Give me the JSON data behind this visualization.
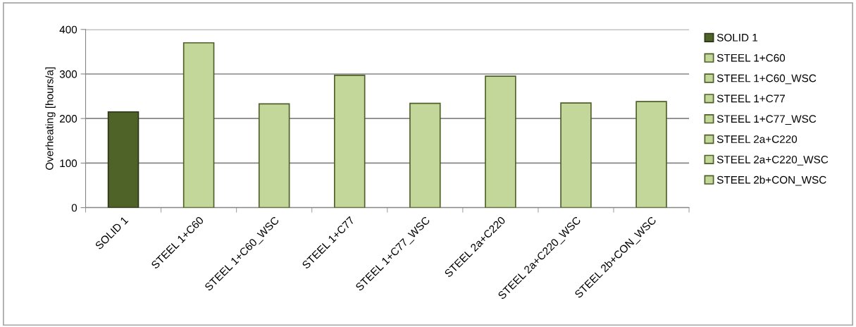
{
  "chart_data": {
    "type": "bar",
    "ylabel": "Overheating [hours/a]",
    "categories": [
      "SOLID 1",
      "STEEL 1+C60",
      "STEEL 1+C60_WSC",
      "STEEL 1+C77",
      "STEEL 1+C77_WSC",
      "STEEL 2a+C220",
      "STEEL 2a+C220_WSC",
      "STEEL 2b+CON_WSC"
    ],
    "series": [
      {
        "name": "SOLID 1",
        "color": "#4f6228",
        "values": [
          215,
          null,
          null,
          null,
          null,
          null,
          null,
          null
        ]
      },
      {
        "name": "STEEL 1+C60",
        "color": "#c4d79b",
        "values": [
          null,
          370,
          null,
          null,
          null,
          null,
          null,
          null
        ]
      },
      {
        "name": "STEEL 1+C60_WSC",
        "color": "#c4d79b",
        "values": [
          null,
          null,
          233,
          null,
          null,
          null,
          null,
          null
        ]
      },
      {
        "name": "STEEL 1+C77",
        "color": "#c4d79b",
        "values": [
          null,
          null,
          null,
          297,
          null,
          null,
          null,
          null
        ]
      },
      {
        "name": "STEEL 1+C77_WSC",
        "color": "#c4d79b",
        "values": [
          null,
          null,
          null,
          null,
          234,
          null,
          null,
          null
        ]
      },
      {
        "name": "STEEL 2a+C220",
        "color": "#c4d79b",
        "values": [
          null,
          null,
          null,
          null,
          null,
          295,
          null,
          null
        ]
      },
      {
        "name": "STEEL 2a+C220_WSC",
        "color": "#c4d79b",
        "values": [
          null,
          null,
          null,
          null,
          null,
          null,
          235,
          null
        ]
      },
      {
        "name": "STEEL 2b+CON_WSC",
        "color": "#c4d79b",
        "values": [
          null,
          null,
          null,
          null,
          null,
          null,
          null,
          238
        ]
      }
    ],
    "ylim": [
      0,
      400
    ],
    "yticks": [
      0,
      100,
      200,
      300,
      400
    ],
    "grid": "y",
    "legend": "right"
  }
}
